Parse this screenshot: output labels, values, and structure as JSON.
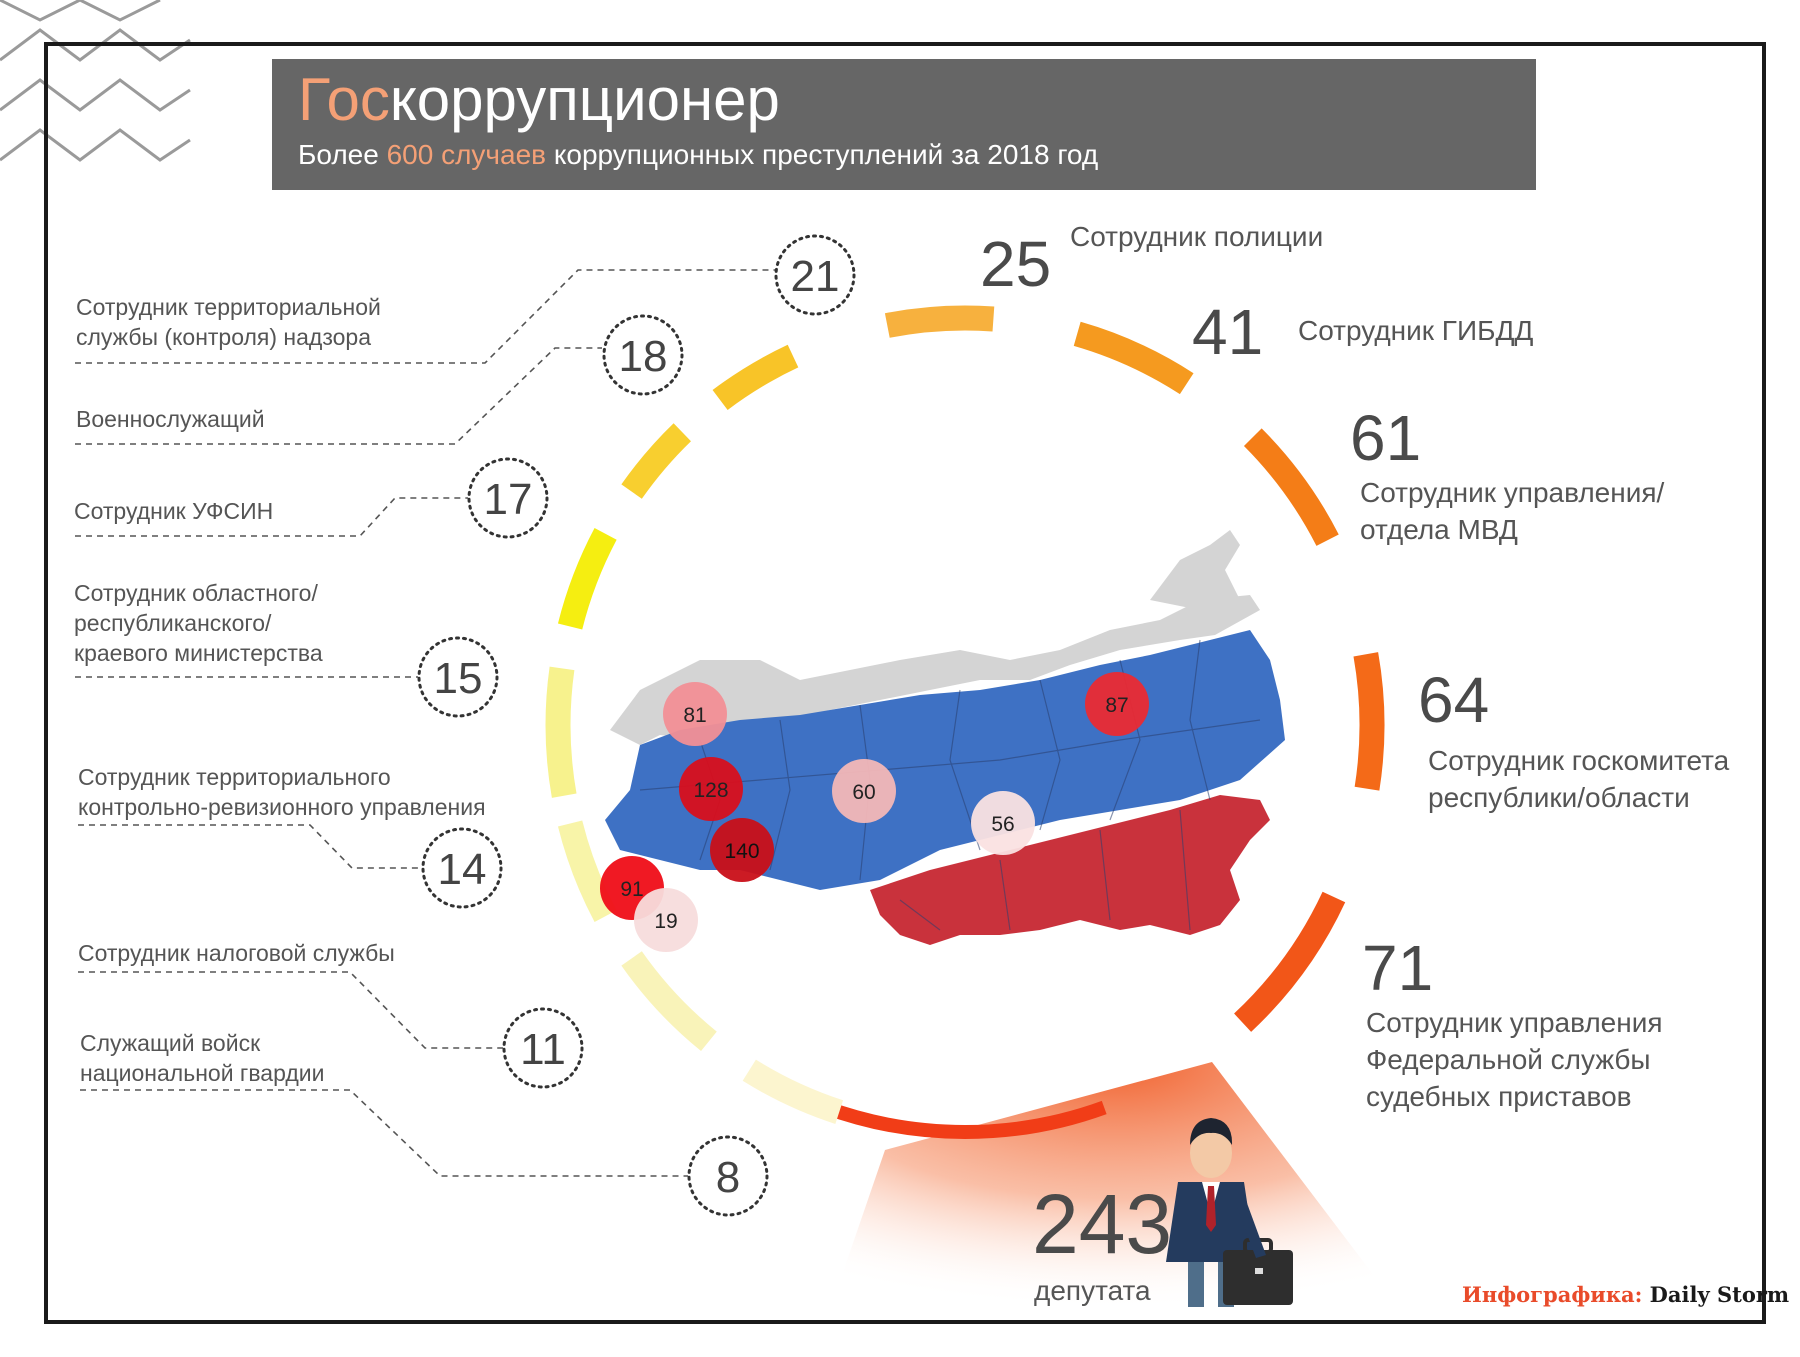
{
  "header": {
    "title_accent": "Гос",
    "title_rest": "коррупционер",
    "subtitle_pre": "Более ",
    "subtitle_accent": "600 случаев",
    "subtitle_post": " коррупционных преступлений за 2018 год"
  },
  "chart_data": {
    "type": "radial-segments",
    "title": "Госкоррупционер",
    "subtitle": "Более 600 случаев коррупционных преступлений за 2018 год",
    "categories": [
      {
        "label": "Сотрудник полиции",
        "value": 25
      },
      {
        "label": "Сотрудник ГИБДД",
        "value": 41
      },
      {
        "label": "Сотрудник управления/ отдела МВД",
        "value": 61
      },
      {
        "label": "Сотрудник госкомитета республики/области",
        "value": 64
      },
      {
        "label": "Сотрудник управления Федеральной службы судебных приставов",
        "value": 71
      },
      {
        "label": "депутата",
        "value": 243
      },
      {
        "label": "Сотрудник территориальной службы (контроля) надзора",
        "value": 21
      },
      {
        "label": "Военнослужащий",
        "value": 18
      },
      {
        "label": "Сотрудник УФСИН",
        "value": 17
      },
      {
        "label": "Сотрудник областного/ республиканского/ краевого министерства",
        "value": 15
      },
      {
        "label": "Сотрудник территориального контрольно-ревизионного управления",
        "value": 14
      },
      {
        "label": "Сотрудник налоговой службы",
        "value": 11
      },
      {
        "label": "Служащий войск национальной гвардии",
        "value": 8
      }
    ],
    "map_markers": [
      81,
      128,
      140,
      91,
      19,
      60,
      56,
      87
    ]
  },
  "left_labels": {
    "l21": [
      "Сотрудник территориальной",
      "службы (контроля) надзора"
    ],
    "l18": [
      "Военнослужащий"
    ],
    "l17": [
      "Сотрудник УФСИН"
    ],
    "l15": [
      "Сотрудник областного/",
      "республиканского/",
      "краевого министерства"
    ],
    "l14": [
      "Сотрудник территориального",
      "контрольно-ревизионного управления"
    ],
    "l11": [
      "Сотрудник налоговой службы"
    ],
    "l8": [
      "Служащий войск",
      "национальной гвардии"
    ]
  },
  "right_labels": {
    "r25": [
      "Сотрудник полиции"
    ],
    "r41": [
      "Сотрудник ГИБДД"
    ],
    "r61": [
      "Сотрудник управления/",
      "отдела МВД"
    ],
    "r64": [
      "Сотрудник госкомитета",
      "республики/области"
    ],
    "r71": [
      "Сотрудник управления",
      "Федеральной службы",
      "судебных приставов"
    ],
    "r243": [
      "депутата"
    ]
  },
  "colors": {
    "header_bg": "#666666",
    "accent": "#f4a076",
    "map_blue": "#3e71c4",
    "map_red": "#c9323c",
    "map_grey": "#d4d4d4"
  },
  "credit": {
    "prefix": "Инфографика:",
    "brand": "Daily Storm"
  }
}
